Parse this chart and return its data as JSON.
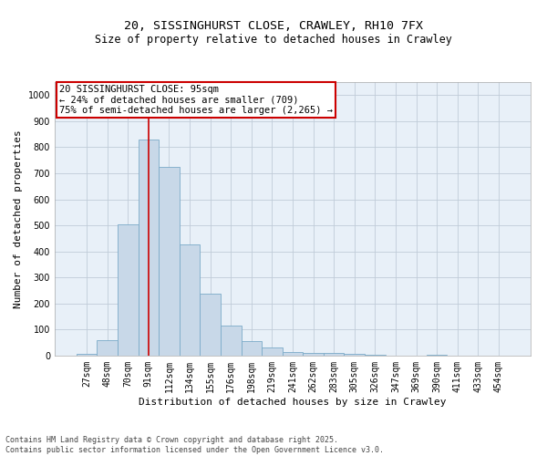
{
  "title_line1": "20, SISSINGHURST CLOSE, CRAWLEY, RH10 7FX",
  "title_line2": "Size of property relative to detached houses in Crawley",
  "xlabel": "Distribution of detached houses by size in Crawley",
  "ylabel": "Number of detached properties",
  "bar_color": "#c8d8e8",
  "bar_edge_color": "#7aaac8",
  "background_color": "#e8f0f8",
  "categories": [
    "27sqm",
    "48sqm",
    "70sqm",
    "91sqm",
    "112sqm",
    "134sqm",
    "155sqm",
    "176sqm",
    "198sqm",
    "219sqm",
    "241sqm",
    "262sqm",
    "283sqm",
    "305sqm",
    "326sqm",
    "347sqm",
    "369sqm",
    "390sqm",
    "411sqm",
    "433sqm",
    "454sqm"
  ],
  "values": [
    8,
    60,
    505,
    828,
    726,
    428,
    238,
    116,
    57,
    32,
    15,
    10,
    12,
    8,
    5,
    0,
    0,
    5,
    0,
    0,
    0
  ],
  "ylim": [
    0,
    1050
  ],
  "yticks": [
    0,
    100,
    200,
    300,
    400,
    500,
    600,
    700,
    800,
    900,
    1000
  ],
  "property_label": "20 SISSINGHURST CLOSE: 95sqm",
  "pct_smaller": "24% of detached houses are smaller (709)",
  "pct_larger": "75% of semi-detached houses are larger (2,265)",
  "vline_x_index": 3,
  "annotation_box_color": "#ffffff",
  "annotation_box_edge": "#cc0000",
  "vline_color": "#cc0000",
  "footer_line1": "Contains HM Land Registry data © Crown copyright and database right 2025.",
  "footer_line2": "Contains public sector information licensed under the Open Government Licence v3.0.",
  "grid_color": "#c0ccd8",
  "title1_fontsize": 9.5,
  "title2_fontsize": 8.5,
  "tick_fontsize": 7,
  "label_fontsize": 8,
  "annot_fontsize": 7.5,
  "footer_fontsize": 6
}
